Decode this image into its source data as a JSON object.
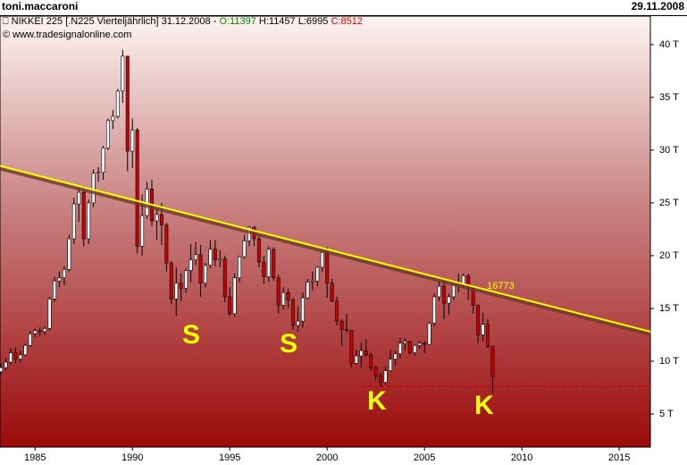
{
  "header": {
    "user": "toni.maccaroni",
    "date": "29.11.2008"
  },
  "chart_data": {
    "type": "candlestick",
    "legend": {
      "symbol": "NIKKEI 225 [.N225  Vierteljährlich] 31.12.2008 - ",
      "open": "O:11397",
      "high": "H:11457",
      "low": "L:6995",
      "close": "C:8512"
    },
    "copyright": "© www.tradesignalonline.com",
    "xlim": [
      1983.2,
      2016.6
    ],
    "xticks": [
      1985,
      1990,
      1995,
      2000,
      2005,
      2010,
      2015
    ],
    "ylim": [
      1.86,
      42.7
    ],
    "yticks": [
      {
        "value": 5,
        "label": "5 T"
      },
      {
        "value": 10,
        "label": "10 T"
      },
      {
        "value": 15,
        "label": "15 T"
      },
      {
        "value": 20,
        "label": "20 T"
      },
      {
        "value": 25,
        "label": "25 T"
      },
      {
        "value": 30,
        "label": "30 T"
      },
      {
        "value": 35,
        "label": "35 T"
      },
      {
        "value": 40,
        "label": "40 T"
      }
    ],
    "series": [
      {
        "up_color": "#ffffff",
        "down_color": "#cc0000",
        "x": [
          1983.0,
          1983.25,
          1983.5,
          1983.75,
          1984.0,
          1984.25,
          1984.5,
          1984.75,
          1985.0,
          1985.25,
          1985.5,
          1985.75,
          1986.0,
          1986.25,
          1986.5,
          1986.75,
          1987.0,
          1987.25,
          1987.5,
          1987.75,
          1988.0,
          1988.25,
          1988.5,
          1988.75,
          1989.0,
          1989.25,
          1989.5,
          1989.75,
          1990.0,
          1990.25,
          1990.5,
          1990.75,
          1991.0,
          1991.25,
          1991.5,
          1991.75,
          1992.0,
          1992.25,
          1992.5,
          1992.75,
          1993.0,
          1993.25,
          1993.5,
          1993.75,
          1994.0,
          1994.25,
          1994.5,
          1994.75,
          1995.0,
          1995.25,
          1995.5,
          1995.75,
          1996.0,
          1996.25,
          1996.5,
          1996.75,
          1997.0,
          1997.25,
          1997.5,
          1997.75,
          1998.0,
          1998.25,
          1998.5,
          1998.75,
          1999.0,
          1999.25,
          1999.5,
          1999.75,
          2000.0,
          2000.25,
          2000.5,
          2000.75,
          2001.0,
          2001.25,
          2001.5,
          2001.75,
          2002.0,
          2002.25,
          2002.5,
          2002.75,
          2003.0,
          2003.25,
          2003.5,
          2003.75,
          2004.0,
          2004.25,
          2004.5,
          2004.75,
          2005.0,
          2005.25,
          2005.5,
          2005.75,
          2006.0,
          2006.25,
          2006.5,
          2006.75,
          2007.0,
          2007.25,
          2007.5,
          2007.75,
          2008.0,
          2008.25,
          2008.5
        ],
        "open": [
          8.8,
          9.0,
          9.4,
          9.9,
          10.8,
          10.2,
          10.6,
          11.5,
          12.6,
          12.9,
          12.8,
          13.1,
          15.9,
          17.6,
          17.9,
          18.7,
          21.6,
          24.9,
          26.0,
          21.6,
          25.0,
          27.8,
          27.9,
          30.2,
          32.8,
          33.2,
          35.6,
          38.9,
          29.9,
          31.9,
          20.9,
          23.8,
          26.3,
          23.3,
          23.9,
          22.9,
          19.3,
          15.9,
          17.4,
          16.9,
          18.6,
          19.6,
          20.1,
          17.4,
          19.1,
          20.6,
          19.6,
          19.7,
          16.1,
          14.5,
          17.9,
          19.9,
          21.4,
          22.7,
          21.6,
          19.4,
          18.0,
          20.6,
          17.9,
          15.3,
          16.5,
          15.8,
          13.4,
          13.8,
          16.0,
          17.5,
          17.6,
          18.9,
          20.3,
          17.4,
          15.7,
          13.8,
          13.0,
          12.9,
          9.8,
          10.5,
          11.0,
          10.6,
          9.4,
          8.6,
          8.0,
          9.1,
          10.2,
          10.7,
          11.7,
          11.9,
          10.8,
          11.5,
          11.7,
          11.6,
          13.6,
          16.1,
          17.1,
          15.5,
          16.1,
          17.2,
          17.3,
          18.1,
          16.8,
          15.3,
          12.5,
          13.5,
          11.397
        ],
        "high": [
          9.5,
          9.8,
          10.3,
          11.2,
          11.3,
          11.0,
          11.7,
          12.8,
          13.1,
          13.2,
          13.3,
          16.1,
          18.0,
          18.5,
          19.0,
          22.0,
          25.5,
          26.6,
          26.6,
          25.3,
          28.2,
          28.4,
          30.4,
          33.0,
          33.8,
          35.8,
          39.5,
          38.9,
          33.0,
          32.1,
          25.8,
          27.0,
          27.2,
          24.5,
          25.0,
          23.1,
          19.5,
          18.9,
          18.3,
          18.8,
          21.1,
          21.3,
          21.0,
          19.3,
          21.5,
          21.5,
          20.5,
          20.0,
          17.0,
          18.3,
          20.0,
          22.0,
          22.8,
          22.8,
          21.9,
          20.0,
          20.9,
          20.8,
          18.2,
          17.0,
          16.9,
          16.0,
          15.2,
          16.5,
          17.8,
          18.5,
          19.0,
          20.8,
          20.8,
          17.8,
          16.1,
          14.0,
          14.5,
          12.9,
          11.1,
          11.8,
          12.1,
          10.8,
          9.6,
          8.9,
          9.5,
          11.1,
          11.0,
          12.2,
          12.2,
          11.9,
          11.6,
          11.9,
          11.9,
          13.7,
          16.4,
          17.6,
          17.6,
          16.4,
          17.3,
          18.3,
          18.3,
          18.3,
          17.0,
          15.4,
          14.6,
          14.0,
          11.457
        ],
        "low": [
          8.4,
          8.7,
          9.1,
          9.7,
          9.8,
          9.9,
          10.5,
          11.4,
          12.3,
          12.4,
          12.5,
          12.9,
          15.6,
          17.0,
          17.2,
          18.5,
          21.1,
          23.2,
          20.9,
          21.1,
          24.6,
          27.0,
          27.2,
          30.0,
          32.0,
          33.0,
          34.5,
          28.0,
          28.3,
          20.2,
          20.0,
          23.5,
          22.8,
          21.5,
          21.0,
          18.5,
          15.4,
          14.3,
          15.7,
          16.5,
          17.5,
          19.1,
          16.1,
          17.0,
          18.8,
          19.0,
          18.9,
          15.6,
          14.3,
          14.2,
          17.5,
          19.7,
          20.9,
          20.9,
          18.9,
          17.3,
          17.5,
          17.6,
          14.5,
          14.9,
          15.0,
          13.0,
          12.8,
          13.2,
          15.9,
          16.7,
          17.1,
          18.5,
          16.0,
          15.6,
          13.4,
          11.4,
          12.7,
          9.4,
          9.7,
          9.4,
          10.4,
          9.1,
          8.2,
          7.6,
          7.8,
          9.0,
          9.6,
          10.3,
          11.0,
          10.6,
          10.5,
          11.2,
          10.8,
          11.6,
          13.3,
          15.7,
          14.0,
          14.4,
          15.8,
          16.5,
          16.9,
          15.8,
          14.5,
          11.7,
          11.9,
          11.2,
          6.995
        ],
        "close": [
          9.0,
          9.4,
          9.9,
          10.8,
          10.2,
          10.6,
          11.5,
          12.6,
          12.9,
          12.8,
          13.1,
          15.9,
          17.6,
          17.9,
          18.7,
          21.6,
          24.9,
          26.0,
          21.6,
          25.0,
          27.8,
          27.9,
          30.2,
          32.8,
          33.2,
          35.6,
          38.9,
          29.9,
          31.9,
          20.9,
          23.8,
          26.3,
          23.3,
          23.9,
          22.9,
          19.3,
          15.9,
          17.4,
          16.9,
          18.6,
          19.6,
          20.1,
          17.4,
          19.1,
          20.6,
          19.6,
          19.7,
          16.1,
          14.5,
          17.9,
          19.9,
          21.4,
          22.7,
          21.6,
          19.4,
          18.0,
          20.6,
          17.9,
          15.3,
          16.5,
          15.8,
          13.4,
          13.8,
          16.0,
          17.5,
          17.6,
          18.9,
          20.3,
          17.4,
          15.7,
          13.8,
          13.0,
          12.9,
          9.8,
          10.5,
          11.0,
          10.6,
          9.4,
          8.6,
          8.0,
          9.1,
          10.2,
          10.7,
          11.7,
          11.9,
          10.8,
          11.5,
          11.7,
          11.6,
          13.6,
          16.1,
          17.1,
          15.5,
          16.1,
          17.2,
          17.3,
          18.1,
          16.8,
          15.3,
          12.5,
          13.5,
          11.4,
          8.512
        ]
      }
    ],
    "trend_line": {
      "x": [
        1983.2,
        2016.6
      ],
      "y": [
        28.5,
        12.8
      ],
      "color": "#ffff00",
      "label": "16773"
    },
    "support_line": {
      "x": [
        2001.8,
        2016.6
      ],
      "y": [
        7.6,
        7.6
      ],
      "color": "#cc0000"
    },
    "annotations": [
      "S",
      "S",
      "K",
      "K"
    ]
  }
}
